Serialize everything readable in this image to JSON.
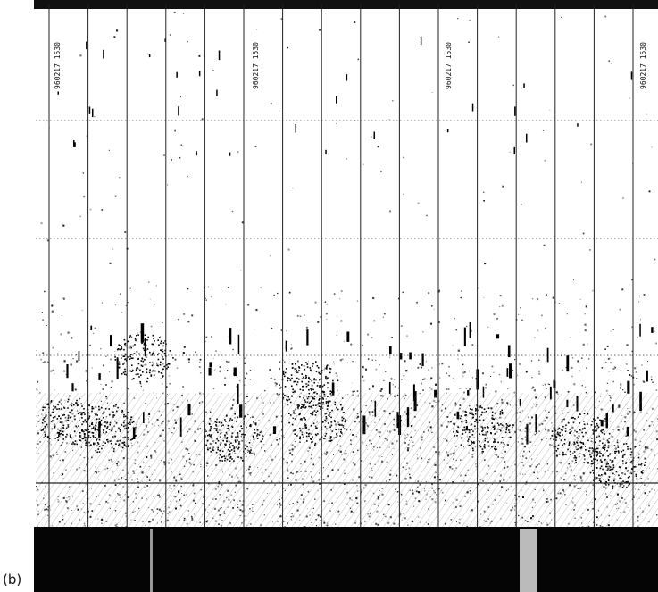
{
  "figure": {
    "panel_label": "(b)",
    "timestamps": [
      "960217 1530",
      "960217 1530",
      "960217 1530",
      "960217 1530"
    ],
    "colors": {
      "background": "#ffffff",
      "ink": "#111111",
      "gridline_dotted": "#333333",
      "seabed_band": "#050505"
    }
  }
}
